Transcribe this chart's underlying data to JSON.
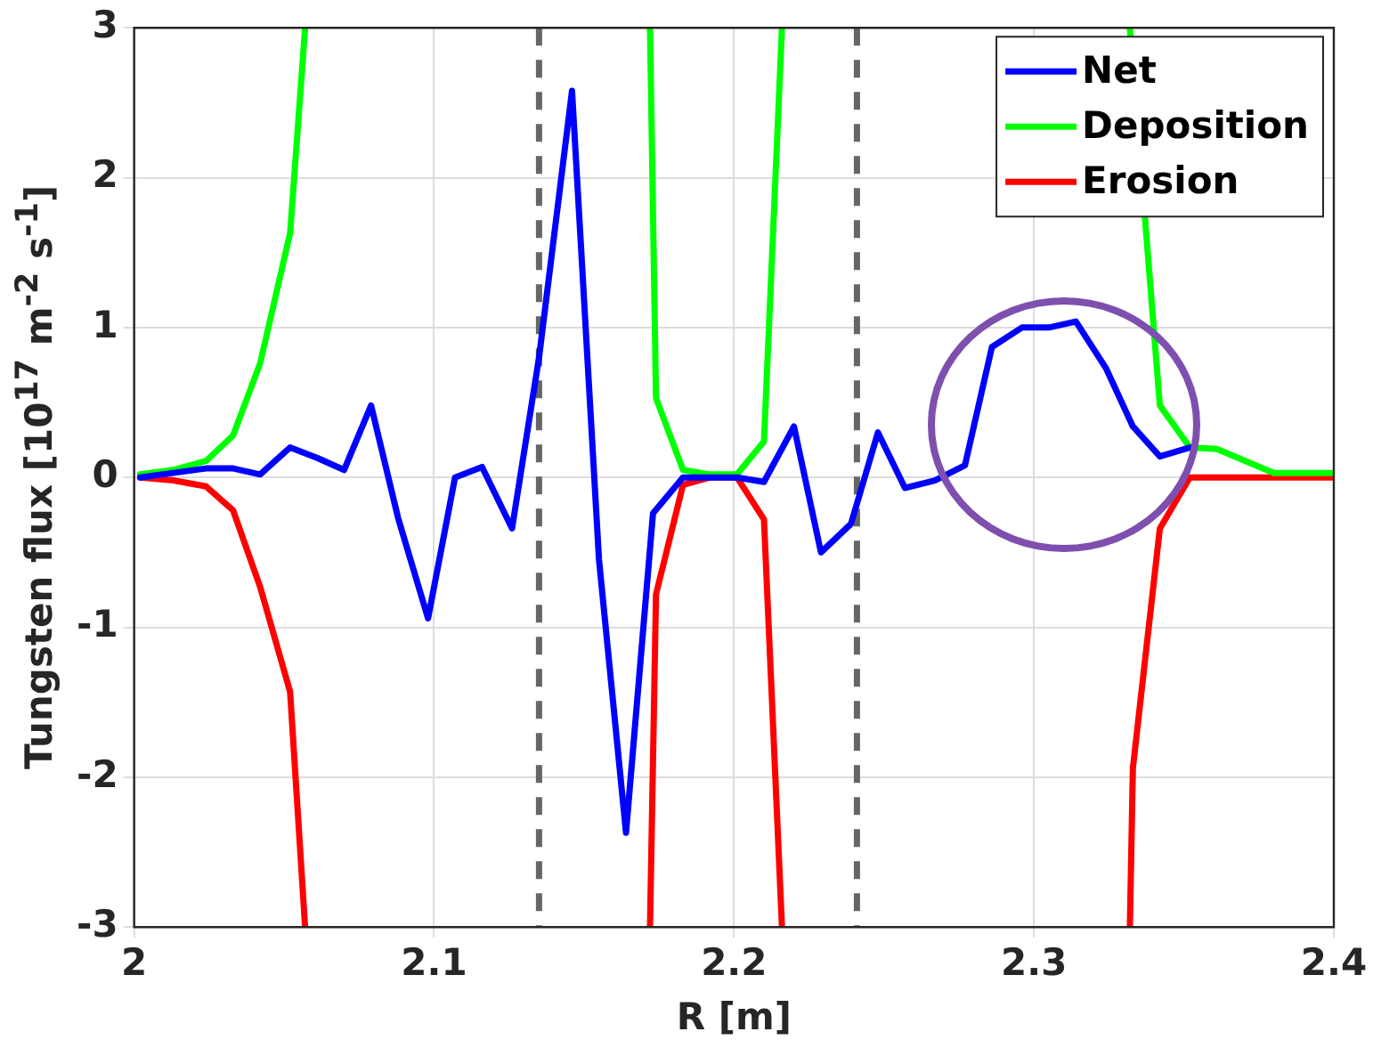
{
  "chart_data": {
    "type": "line",
    "xlabel": "R [m]",
    "ylabel": "Tungsten flux [10$^{17}$ m$^{-2}$ s$^{-1}$]",
    "xlim": [
      2,
      2.4
    ],
    "xticks": [
      2,
      2.1,
      2.2,
      2.3,
      2.4
    ],
    "ylim": [
      -3,
      3
    ],
    "yticks": [
      -3,
      -2,
      -1,
      0,
      1,
      2,
      3
    ],
    "grid": true,
    "legend": "top right",
    "line_style": "solid",
    "marker": "none",
    "ref_lines": [
      {
        "axis": "x",
        "value": 2.135,
        "color": "#666666",
        "line_style": "dashed"
      },
      {
        "axis": "x",
        "value": 2.241,
        "color": "#666666",
        "line_style": "dashed"
      }
    ],
    "series": [
      {
        "name": "Net",
        "color": "#0000ff",
        "x": [
          2.002,
          2.013,
          2.024,
          2.033,
          2.042,
          2.052,
          2.061,
          2.07,
          2.079,
          2.088,
          2.098,
          2.107,
          2.116,
          2.126,
          2.135,
          2.146,
          2.155,
          2.164,
          2.173,
          2.183,
          2.192,
          2.201,
          2.21,
          2.22,
          2.229,
          2.239,
          2.248,
          2.257,
          2.267,
          2.277,
          2.286,
          2.296,
          2.305,
          2.314,
          2.324,
          2.333,
          2.342,
          2.352
        ],
        "values": [
          0,
          0.03,
          0.06,
          0.06,
          0.02,
          0.2,
          0.13,
          0.05,
          0.48,
          -0.27,
          -0.94,
          0,
          0.07,
          -0.34,
          0.8,
          2.58,
          -0.55,
          -2.37,
          -0.24,
          0,
          0,
          0,
          -0.03,
          0.34,
          -0.5,
          -0.31,
          0.3,
          -0.07,
          -0.02,
          0.08,
          0.87,
          1,
          1,
          1.04,
          0.73,
          0.34,
          0.14,
          0.2
        ]
      },
      {
        "name": "Deposition",
        "color": "#00ff00",
        "x": [
          2.002,
          2.013,
          2.024,
          2.033,
          2.042,
          2.052,
          2.057,
          2.11,
          2.172,
          2.174,
          2.183,
          2.192,
          2.201,
          2.21,
          2.216,
          2.28,
          2.332,
          2.342,
          2.352,
          2.361,
          2.38,
          2.4
        ],
        "values": [
          0.02,
          0.05,
          0.11,
          0.28,
          0.76,
          1.63,
          3,
          null,
          3,
          0.53,
          0.05,
          0.02,
          0.02,
          0.24,
          3,
          null,
          3,
          0.48,
          0.2,
          0.19,
          0.03,
          0.03
        ]
      },
      {
        "name": "Erosion",
        "color": "#ff0000",
        "x": [
          2.002,
          2.013,
          2.024,
          2.033,
          2.042,
          2.052,
          2.057,
          2.11,
          2.172,
          2.174,
          2.183,
          2.192,
          2.201,
          2.21,
          2.216,
          2.28,
          2.332,
          2.333,
          2.342,
          2.352,
          2.4
        ],
        "values": [
          0,
          -0.02,
          -0.06,
          -0.22,
          -0.73,
          -1.43,
          -3,
          null,
          -3,
          -0.78,
          -0.05,
          0,
          0,
          -0.28,
          -3,
          null,
          -3,
          -1.94,
          -0.34,
          0,
          0
        ]
      }
    ]
  }
}
